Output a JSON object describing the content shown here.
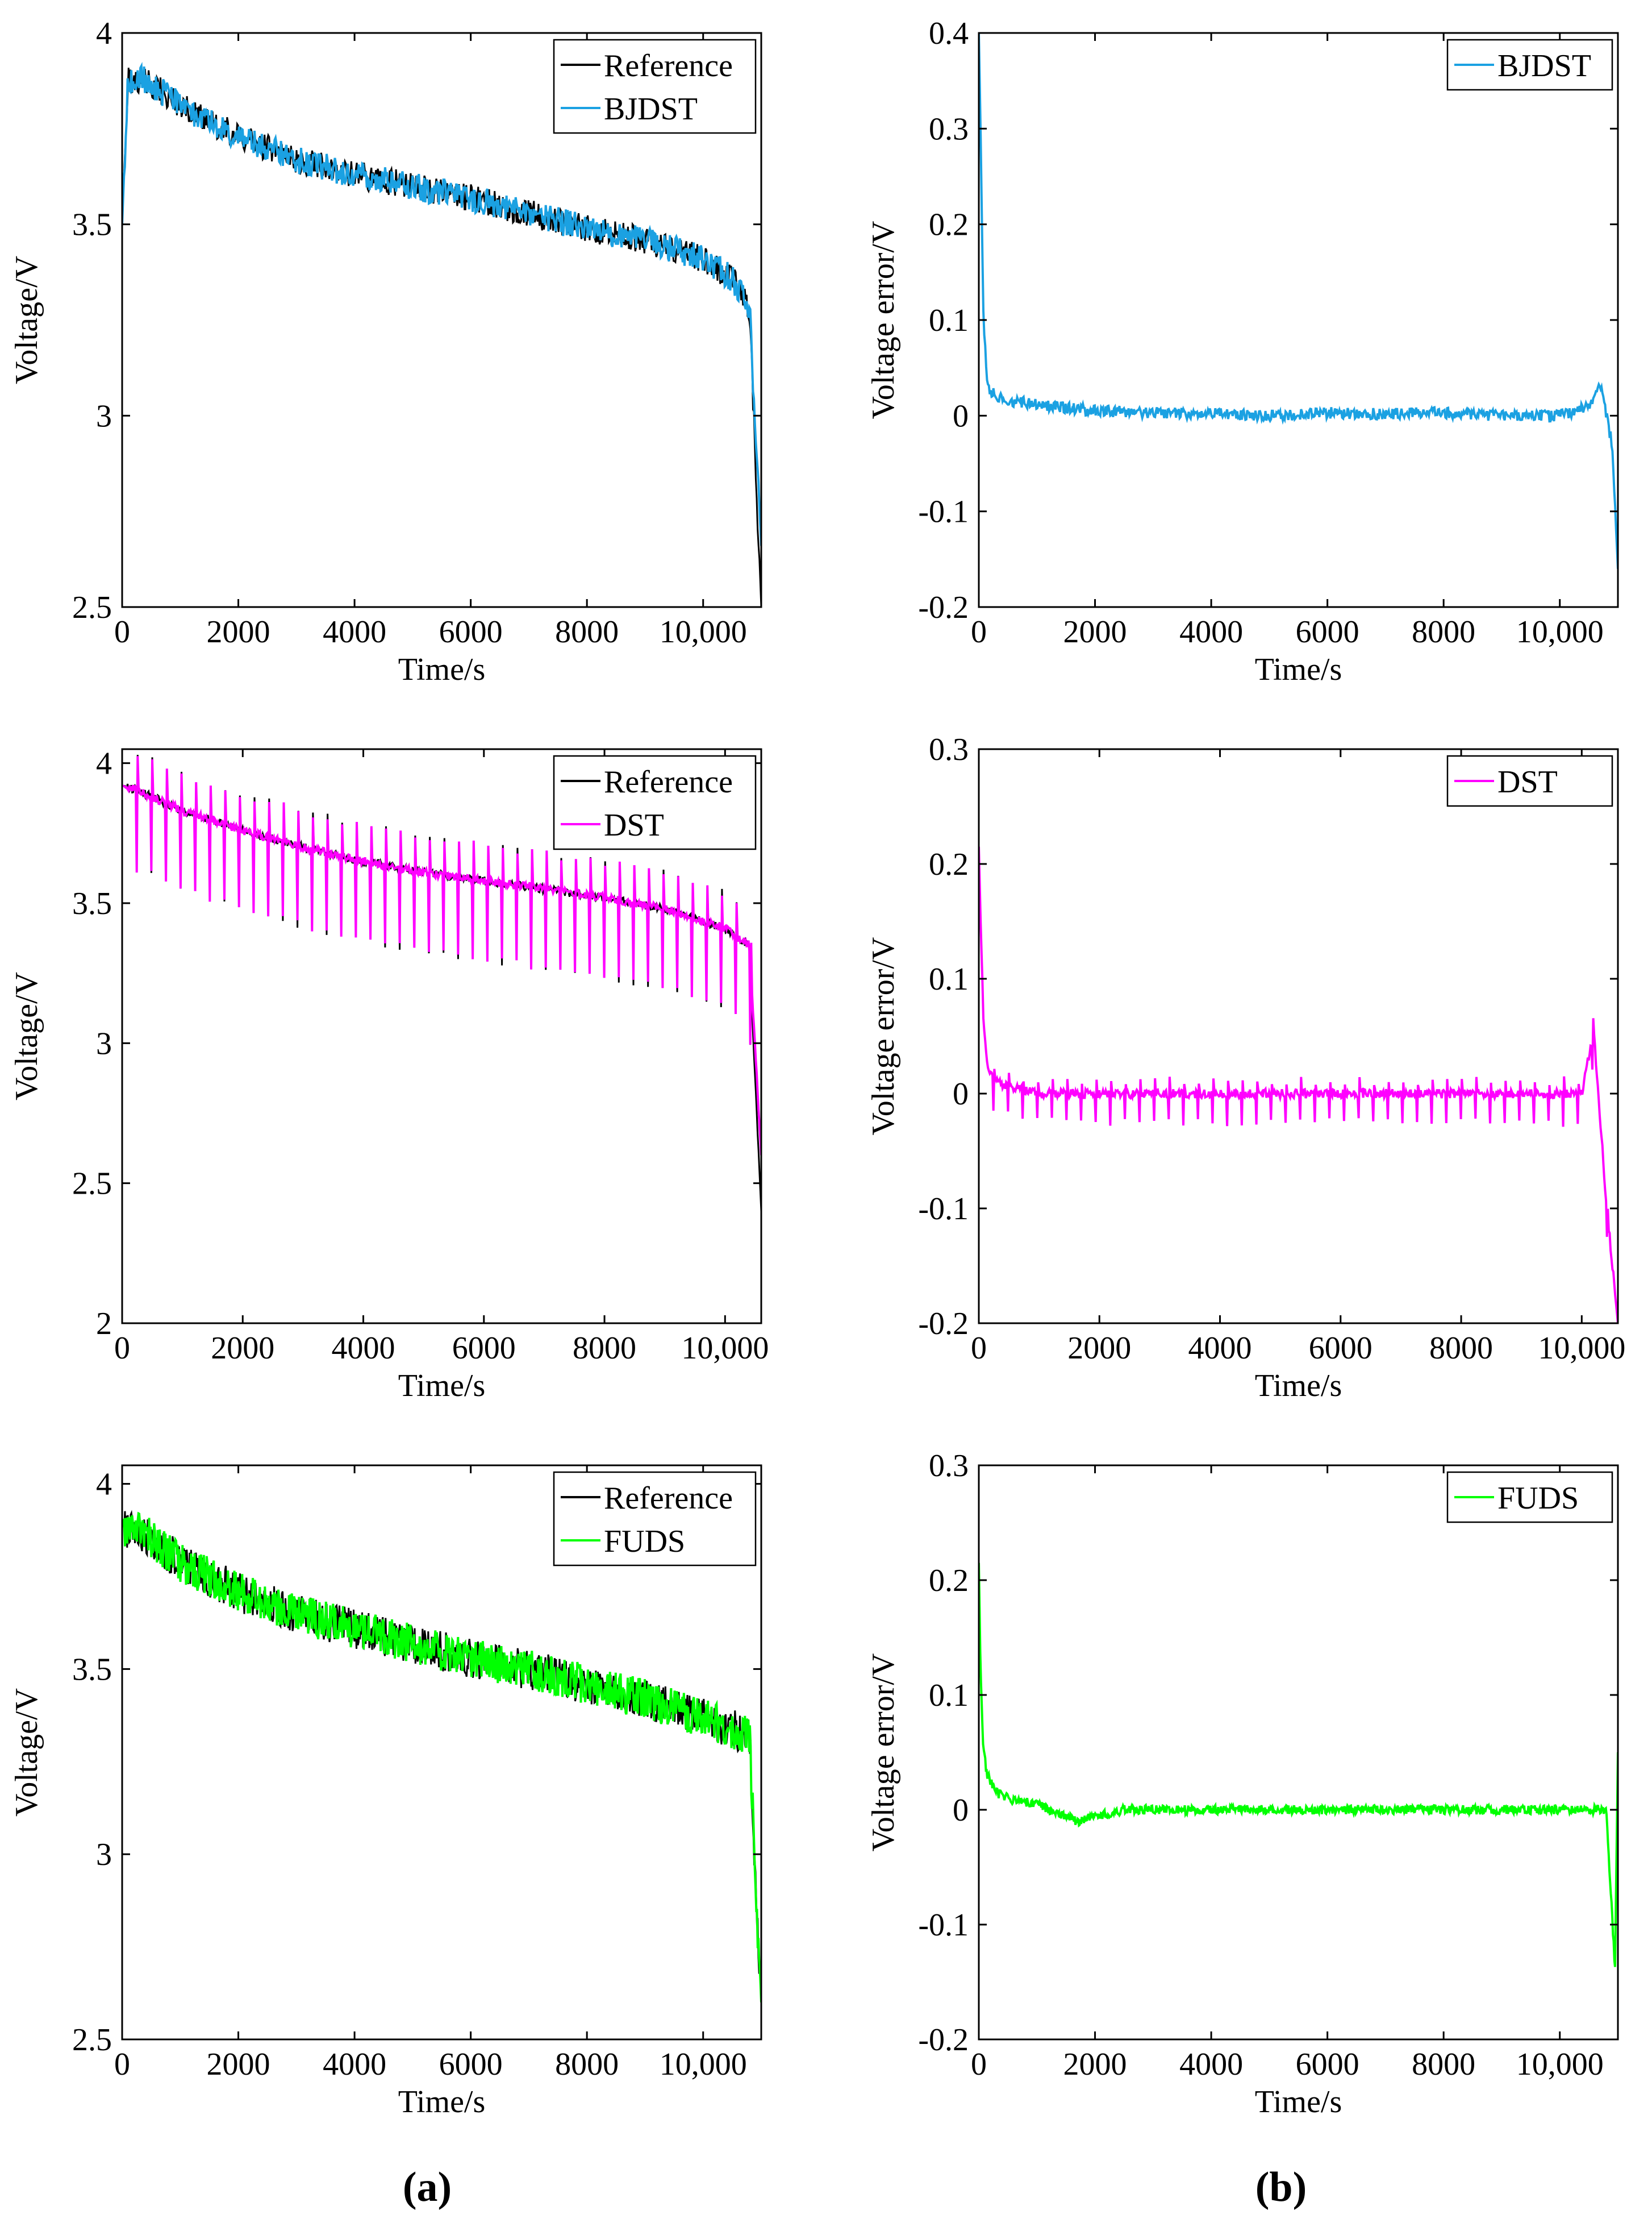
{
  "panel_labels": [
    "(a)",
    "(b)"
  ],
  "chart_data": [
    {
      "id": "a1",
      "type": "line",
      "xlabel": "Time/s",
      "ylabel": "Voltage/V",
      "xlim": [
        0,
        11000
      ],
      "ylim": [
        2.5,
        4.0
      ],
      "xticks": [
        0,
        2000,
        4000,
        6000,
        8000,
        10000
      ],
      "xtick_labels": [
        "0",
        "2000",
        "4000",
        "6000",
        "8000",
        "10,000"
      ],
      "yticks": [
        2.5,
        3,
        3.5,
        4
      ],
      "ytick_labels": [
        "2.5",
        "3",
        "3.5",
        "4"
      ],
      "legend_position": "top-right",
      "series": [
        {
          "name": "Reference",
          "color": "#000000",
          "x": [
            0,
            100,
            400,
            1000,
            2000,
            3000,
            4000,
            5000,
            6000,
            7000,
            8000,
            9000,
            10000,
            10500,
            10800,
            11000
          ],
          "y": [
            3.5,
            3.9,
            3.9,
            3.83,
            3.75,
            3.69,
            3.65,
            3.62,
            3.59,
            3.55,
            3.51,
            3.48,
            3.43,
            3.38,
            3.3,
            2.5
          ]
        },
        {
          "name": "BJDST",
          "color": "#1BA1E2",
          "x": [
            0,
            100,
            400,
            1000,
            2000,
            3000,
            4000,
            5000,
            6000,
            7000,
            8000,
            9000,
            10000,
            10500,
            10800,
            11000
          ],
          "y": [
            3.5,
            3.9,
            3.9,
            3.83,
            3.75,
            3.69,
            3.65,
            3.62,
            3.59,
            3.55,
            3.51,
            3.48,
            3.43,
            3.38,
            3.3,
            2.66
          ]
        }
      ]
    },
    {
      "id": "b1",
      "type": "line",
      "xlabel": "Time/s",
      "ylabel": "Voltage error/V",
      "xlim": [
        0,
        11000
      ],
      "ylim": [
        -0.2,
        0.4
      ],
      "xticks": [
        0,
        2000,
        4000,
        6000,
        8000,
        10000
      ],
      "xtick_labels": [
        "0",
        "2000",
        "4000",
        "6000",
        "8000",
        "10,000"
      ],
      "yticks": [
        -0.2,
        -0.1,
        0,
        0.1,
        0.2,
        0.3,
        0.4
      ],
      "ytick_labels": [
        "-0.2",
        "-0.1",
        "0",
        "0.1",
        "0.2",
        "0.3",
        "0.4"
      ],
      "legend_position": "top-right",
      "series": [
        {
          "name": "BJDST",
          "color": "#1BA1E2",
          "x": [
            0,
            30,
            80,
            150,
            300,
            600,
            1000,
            2000,
            3000,
            4000,
            5000,
            6000,
            7000,
            8000,
            9000,
            10000,
            10500,
            10700,
            10900,
            11000
          ],
          "y": [
            0.4,
            0.3,
            0.1,
            0.03,
            0.02,
            0.015,
            0.012,
            0.005,
            0.003,
            0.002,
            0.0,
            0.003,
            0.002,
            0.003,
            0.0,
            0.0,
            0.01,
            0.03,
            -0.03,
            -0.16
          ]
        }
      ]
    },
    {
      "id": "a2",
      "type": "line",
      "xlabel": "Time/s",
      "ylabel": "Voltage/V",
      "xlim": [
        0,
        10600
      ],
      "ylim": [
        2.0,
        4.05
      ],
      "xticks": [
        0,
        2000,
        4000,
        6000,
        8000,
        10000
      ],
      "xtick_labels": [
        "0",
        "2000",
        "4000",
        "6000",
        "8000",
        "10,000"
      ],
      "yticks": [
        2,
        2.5,
        3,
        3.5,
        4
      ],
      "ytick_labels": [
        "2",
        "2.5",
        "3",
        "3.5",
        "4"
      ],
      "legend_position": "top-right",
      "series": [
        {
          "name": "Reference",
          "color": "#000000",
          "x": [
            0,
            300,
            1000,
            2000,
            3000,
            4000,
            5000,
            6000,
            7000,
            8000,
            9000,
            10000,
            10400,
            10600
          ],
          "y": [
            3.92,
            3.9,
            3.83,
            3.76,
            3.7,
            3.65,
            3.61,
            3.58,
            3.55,
            3.52,
            3.48,
            3.41,
            3.35,
            2.4
          ]
        },
        {
          "name": "DST",
          "color": "#FF00FF",
          "x": [
            0,
            300,
            1000,
            2000,
            3000,
            4000,
            5000,
            6000,
            7000,
            8000,
            9000,
            10000,
            10400,
            10600
          ],
          "y": [
            3.92,
            3.9,
            3.83,
            3.76,
            3.7,
            3.65,
            3.61,
            3.58,
            3.55,
            3.52,
            3.48,
            3.41,
            3.35,
            2.6
          ]
        }
      ]
    },
    {
      "id": "b2",
      "type": "line",
      "xlabel": "Time/s",
      "ylabel": "Voltage error/V",
      "xlim": [
        0,
        10600
      ],
      "ylim": [
        -0.2,
        0.3
      ],
      "xticks": [
        0,
        2000,
        4000,
        6000,
        8000,
        10000
      ],
      "xtick_labels": [
        "0",
        "2000",
        "4000",
        "6000",
        "8000",
        "10,000"
      ],
      "yticks": [
        -0.2,
        -0.1,
        0,
        0.1,
        0.2,
        0.3
      ],
      "ytick_labels": [
        "-0.2",
        "-0.1",
        "0",
        "0.1",
        "0.2",
        "0.3"
      ],
      "legend_position": "top-right",
      "series": [
        {
          "name": "DST",
          "color": "#FF00FF",
          "x": [
            0,
            30,
            80,
            150,
            300,
            600,
            1000,
            2000,
            3000,
            4000,
            5000,
            6000,
            7000,
            8000,
            9000,
            10000,
            10200,
            10400,
            10600
          ],
          "y": [
            0.215,
            0.15,
            0.06,
            0.02,
            0.01,
            0.005,
            0.0,
            0.0,
            0.0,
            0.0,
            0.0,
            0.0,
            0.0,
            0.0,
            0.0,
            0.0,
            0.055,
            -0.09,
            -0.2
          ]
        }
      ]
    },
    {
      "id": "a3",
      "type": "line",
      "xlabel": "Time/s",
      "ylabel": "Voltage/V",
      "xlim": [
        0,
        11000
      ],
      "ylim": [
        2.5,
        4.05
      ],
      "xticks": [
        0,
        2000,
        4000,
        6000,
        8000,
        10000
      ],
      "xtick_labels": [
        "0",
        "2000",
        "4000",
        "6000",
        "8000",
        "10,000"
      ],
      "yticks": [
        2.5,
        3,
        3.5,
        4
      ],
      "ytick_labels": [
        "2.5",
        "3",
        "3.5",
        "4"
      ],
      "legend_position": "top-right",
      "series": [
        {
          "name": "Reference",
          "color": "#000000",
          "x": [
            0,
            200,
            1000,
            2000,
            3000,
            4000,
            5000,
            6000,
            7000,
            8000,
            9000,
            10000,
            10800,
            11000
          ],
          "y": [
            3.9,
            3.92,
            3.82,
            3.74,
            3.68,
            3.64,
            3.6,
            3.56,
            3.53,
            3.49,
            3.45,
            3.4,
            3.35,
            2.6
          ]
        },
        {
          "name": "FUDS",
          "color": "#00FF00",
          "x": [
            0,
            200,
            1000,
            2000,
            3000,
            4000,
            5000,
            6000,
            7000,
            8000,
            9000,
            10000,
            10800,
            11000
          ],
          "y": [
            3.9,
            3.92,
            3.82,
            3.74,
            3.68,
            3.64,
            3.6,
            3.56,
            3.53,
            3.49,
            3.45,
            3.4,
            3.35,
            2.6
          ]
        }
      ]
    },
    {
      "id": "b3",
      "type": "line",
      "xlabel": "Time/s",
      "ylabel": "Voltage error/V",
      "xlim": [
        0,
        11000
      ],
      "ylim": [
        -0.2,
        0.3
      ],
      "xticks": [
        0,
        2000,
        4000,
        6000,
        8000,
        10000
      ],
      "xtick_labels": [
        "0",
        "2000",
        "4000",
        "6000",
        "8000",
        "10,000"
      ],
      "yticks": [
        -0.2,
        -0.1,
        0,
        0.1,
        0.2,
        0.3
      ],
      "ytick_labels": [
        "-0.2",
        "-0.1",
        "0",
        "0.1",
        "0.2",
        "0.3"
      ],
      "legend_position": "top-right",
      "series": [
        {
          "name": "FUDS",
          "color": "#00FF00",
          "x": [
            0,
            30,
            80,
            150,
            300,
            600,
            1000,
            1700,
            2500,
            3000,
            4000,
            5000,
            6000,
            7000,
            8000,
            9000,
            10000,
            10800,
            10950,
            11000
          ],
          "y": [
            0.215,
            0.12,
            0.05,
            0.03,
            0.015,
            0.008,
            0.005,
            -0.01,
            0.0,
            0.0,
            0.0,
            0.0,
            0.0,
            0.0,
            0.0,
            0.0,
            0.0,
            0.0,
            -0.14,
            0.05
          ]
        }
      ]
    }
  ]
}
